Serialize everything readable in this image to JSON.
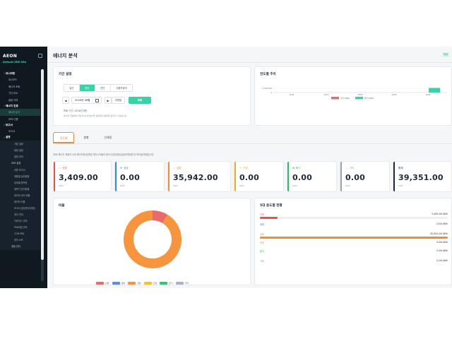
{
  "app": {
    "brand": "AEON",
    "site_label": "Default ZEB Site"
  },
  "page": {
    "title": "에너지 분석",
    "header_badge": "정상"
  },
  "sidebar": {
    "sections": [
      {
        "label": "모니터링",
        "items": [
          "대시보드",
          "에너지 조회",
          "기간 비교",
          "알람 이력"
        ]
      },
      {
        "label": "에너지 진용",
        "items": [
          "에너지 분석",
          "ZEB 인증"
        ]
      },
      {
        "label": "보고서",
        "items": [
          "보고서"
        ]
      },
      {
        "label": "설정",
        "items": [
          "기본 설정",
          "알림 설정",
          "일정 관리"
        ]
      }
    ],
    "zeb_section": "ZEB 설정",
    "zeb_items": [
      "전원 보고서",
      "계통별 설비현황",
      "존재별 항목표",
      "계측기 관리현황",
      "데이터 관리 현황",
      "데이터 허용",
      "보고서 생성관리(자동)"
    ],
    "tail_items": [
      "장치 관리",
      "다바이스 관리",
      "프로파일 관리",
      "COM 포트",
      "장치 소프"
    ],
    "bottom_label": "계정 관리"
  },
  "period": {
    "title": "기간 설정",
    "segments": [
      "일간",
      "월간",
      "연간",
      "사용자정의"
    ],
    "active_segment": 1,
    "month_value": "2026년 06월",
    "prev_symbol": "◀",
    "next_symbol": "▶",
    "prev_label": "이전달",
    "query_label": "조회",
    "info": "조회 기간: 2026년 6월",
    "note": "에너지 현황에서 에너지소비/생산을 설정하여 분류된 분석이 가능합니다."
  },
  "trend": {
    "title": "연도별 추이",
    "y_tick_top": "2,000,000",
    "y_tick_bottom": "0",
    "years": [
      "2022",
      "2023",
      "2024",
      "2025",
      "2026"
    ],
    "legend": [
      "소비 (kWh)",
      "생산 (kWh)"
    ],
    "colors": {
      "consumption": "#e86a6a",
      "production": "#35d3a5"
    }
  },
  "tabs": {
    "items": [
      "용도별",
      "층별",
      "신재생"
    ],
    "active": 0
  },
  "description": "ZEB 에너지 계정의 소비 에너지에 등록된 레지스터들의 용도(난방/냉방/급탕/조명/환기/기타)별 합계입니다.",
  "kpis": [
    {
      "icon": "flame-icon",
      "glyph": "♨",
      "label": "난방",
      "value": "3,409.00",
      "unit": "kWh",
      "color": "#e5534b"
    },
    {
      "icon": "snowflake-icon",
      "glyph": "❄",
      "label": "냉방",
      "value": "0.00",
      "unit": "kWh",
      "color": "#3b82f6"
    },
    {
      "icon": "hot-water-icon",
      "glyph": "♨",
      "label": "급탕",
      "value": "35,942.00",
      "unit": "kWh",
      "color": "#f08a3c"
    },
    {
      "icon": "lightbulb-icon",
      "glyph": "☀",
      "label": "조명",
      "value": "0.00",
      "unit": "kWh",
      "color": "#e8b21c"
    },
    {
      "icon": "fan-icon",
      "glyph": "✿",
      "label": "환기",
      "value": "0.00",
      "unit": "kWh",
      "color": "#22c55e"
    },
    {
      "icon": "dash-icon",
      "glyph": "—",
      "label": "기타",
      "value": "0.00",
      "unit": "kWh",
      "color": "#9aa5b0"
    },
    {
      "icon": "",
      "glyph": "",
      "label": "합계",
      "value": "39,351.00",
      "unit": "kWh",
      "color": "#1e2a36"
    }
  ],
  "ratio": {
    "title": "비율",
    "chart_data": {
      "type": "pie",
      "categories": [
        "난방",
        "냉방",
        "급탕",
        "조명",
        "환기",
        "기타"
      ],
      "values": [
        3409.0,
        0.0,
        35942.0,
        0.0,
        0.0,
        0.0
      ],
      "colors": [
        "#e86a6a",
        "#5b8def",
        "#f7953f",
        "#f2c230",
        "#39c56f",
        "#a8b4c4"
      ]
    }
  },
  "top5": {
    "title": "5대 용도별 현황",
    "max": 35942.0,
    "rows": [
      {
        "name": "난방",
        "value": 3409.0,
        "display": "3,409.00 kWh",
        "color": "#e5534b"
      },
      {
        "name": "냉방",
        "value": 0.0,
        "display": "0.00 kWh",
        "color": "#3b82f6"
      },
      {
        "name": "급탕",
        "value": 35942.0,
        "display": "35,942.00 kWh",
        "color": "#f08a3c"
      },
      {
        "name": "조명",
        "value": 0.0,
        "display": "0.00 kWh",
        "color": "#d6a31a"
      },
      {
        "name": "환기",
        "value": 0.0,
        "display": "0.00 kWh",
        "color": "#22c55e"
      },
      {
        "name": "기타",
        "value": 0.0,
        "display": "0.00 kWh",
        "color": "#8a949e"
      }
    ]
  }
}
